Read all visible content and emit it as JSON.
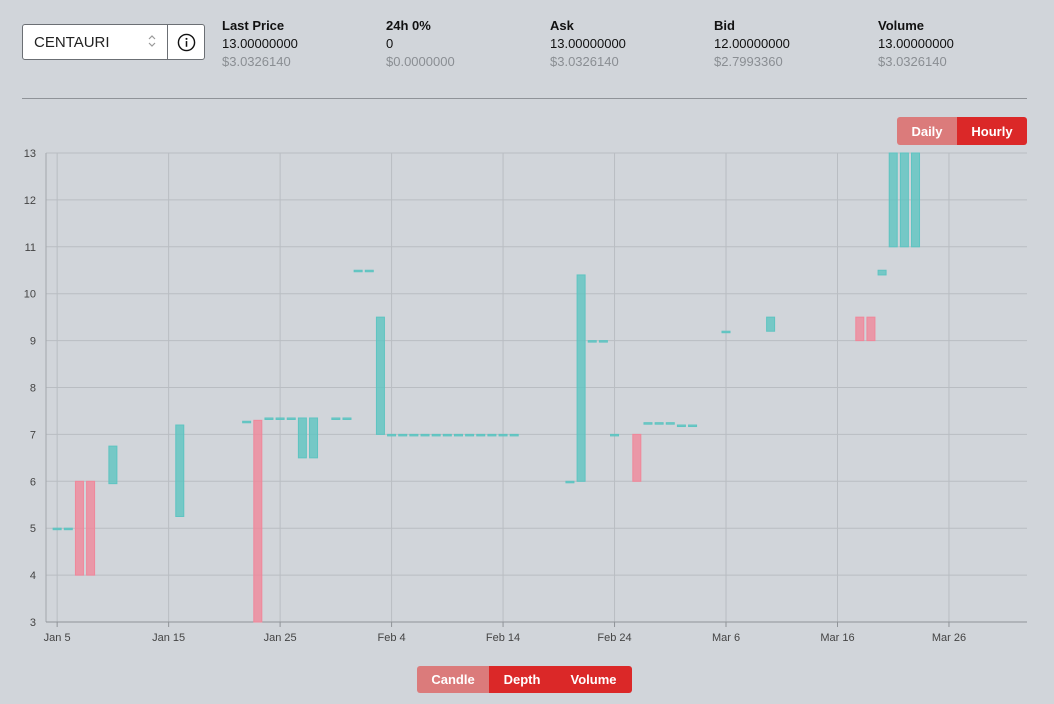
{
  "selector": {
    "value": "CENTAURI"
  },
  "stats": [
    {
      "label": "Last Price",
      "value": "13.00000000",
      "usd": "$3.0326140"
    },
    {
      "label": "24h 0%",
      "value": "0",
      "usd": "$0.0000000"
    },
    {
      "label": "Ask",
      "value": "13.00000000",
      "usd": "$3.0326140"
    },
    {
      "label": "Bid",
      "value": "12.00000000",
      "usd": "$2.7993360"
    },
    {
      "label": "Volume",
      "value": "13.00000000",
      "usd": "$3.0326140"
    }
  ],
  "period_toggle": {
    "daily": "Daily",
    "hourly": "Hourly",
    "active": "hourly"
  },
  "view_toggle": {
    "candle": "Candle",
    "depth": "Depth",
    "volume": "Volume"
  },
  "colors": {
    "up": "#5ec4c1",
    "down": "#f0879a",
    "accent": "#db2828",
    "accent_inactive": "#db7b7b"
  },
  "chart_data": {
    "type": "candlestick",
    "x_ticks": [
      "Jan 5",
      "Jan 15",
      "Jan 25",
      "Feb 4",
      "Feb 14",
      "Feb 24",
      "Mar 6",
      "Mar 16",
      "Mar 26"
    ],
    "y_ticks": [
      3,
      4,
      5,
      6,
      7,
      8,
      9,
      10,
      11,
      12,
      13
    ],
    "ylim": [
      3,
      13
    ],
    "xlim": [
      "Jan 4",
      "Apr 2"
    ],
    "grid": true,
    "candles": [
      {
        "date": "Jan 5",
        "open": 5.0,
        "close": 5.0
      },
      {
        "date": "Jan 6",
        "open": 5.0,
        "close": 5.0
      },
      {
        "date": "Jan 7",
        "open": 6.0,
        "close": 4.0
      },
      {
        "date": "Jan 8",
        "open": 6.0,
        "close": 4.0
      },
      {
        "date": "Jan 10",
        "open": 5.95,
        "close": 6.75
      },
      {
        "date": "Jan 16",
        "open": 5.25,
        "close": 7.2
      },
      {
        "date": "Jan 22",
        "open": 7.28,
        "close": 7.28
      },
      {
        "date": "Jan 23",
        "open": 7.3,
        "close": 3.0
      },
      {
        "date": "Jan 24",
        "open": 7.35,
        "close": 7.35
      },
      {
        "date": "Jan 25",
        "open": 7.35,
        "close": 7.35
      },
      {
        "date": "Jan 26",
        "open": 7.35,
        "close": 7.35
      },
      {
        "date": "Jan 27",
        "open": 6.5,
        "close": 7.35
      },
      {
        "date": "Jan 28",
        "open": 6.5,
        "close": 7.35
      },
      {
        "date": "Jan 30",
        "open": 7.35,
        "close": 7.35
      },
      {
        "date": "Jan 31",
        "open": 7.35,
        "close": 7.35
      },
      {
        "date": "Feb 1",
        "open": 10.5,
        "close": 10.5
      },
      {
        "date": "Feb 2",
        "open": 10.5,
        "close": 10.5
      },
      {
        "date": "Feb 3",
        "open": 7.0,
        "close": 9.5
      },
      {
        "date": "Feb 4",
        "open": 7.0,
        "close": 7.0
      },
      {
        "date": "Feb 5",
        "open": 7.0,
        "close": 7.0
      },
      {
        "date": "Feb 6",
        "open": 7.0,
        "close": 7.0
      },
      {
        "date": "Feb 7",
        "open": 7.0,
        "close": 7.0
      },
      {
        "date": "Feb 8",
        "open": 7.0,
        "close": 7.0
      },
      {
        "date": "Feb 9",
        "open": 7.0,
        "close": 7.0
      },
      {
        "date": "Feb 10",
        "open": 7.0,
        "close": 7.0
      },
      {
        "date": "Feb 11",
        "open": 7.0,
        "close": 7.0
      },
      {
        "date": "Feb 12",
        "open": 7.0,
        "close": 7.0
      },
      {
        "date": "Feb 13",
        "open": 7.0,
        "close": 7.0
      },
      {
        "date": "Feb 14",
        "open": 7.0,
        "close": 7.0
      },
      {
        "date": "Feb 15",
        "open": 7.0,
        "close": 7.0
      },
      {
        "date": "Feb 20",
        "open": 6.0,
        "close": 6.0
      },
      {
        "date": "Feb 21",
        "open": 6.0,
        "close": 10.4
      },
      {
        "date": "Feb 22",
        "open": 9.0,
        "close": 9.0
      },
      {
        "date": "Feb 23",
        "open": 9.0,
        "close": 9.0
      },
      {
        "date": "Feb 24",
        "open": 7.0,
        "close": 7.0
      },
      {
        "date": "Feb 26",
        "open": 7.0,
        "close": 6.0
      },
      {
        "date": "Feb 27",
        "open": 7.25,
        "close": 7.25
      },
      {
        "date": "Feb 28",
        "open": 7.25,
        "close": 7.25
      },
      {
        "date": "Mar 1",
        "open": 7.25,
        "close": 7.25
      },
      {
        "date": "Mar 2",
        "open": 7.2,
        "close": 7.2
      },
      {
        "date": "Mar 3",
        "open": 7.2,
        "close": 7.2
      },
      {
        "date": "Mar 6",
        "open": 9.2,
        "close": 9.2
      },
      {
        "date": "Mar 10",
        "open": 9.2,
        "close": 9.5
      },
      {
        "date": "Mar 18",
        "open": 9.5,
        "close": 9.0
      },
      {
        "date": "Mar 19",
        "open": 9.5,
        "close": 9.0
      },
      {
        "date": "Mar 20",
        "open": 10.4,
        "close": 10.5
      },
      {
        "date": "Mar 21",
        "open": 11.0,
        "close": 13.0
      },
      {
        "date": "Mar 22",
        "open": 11.0,
        "close": 13.0
      },
      {
        "date": "Mar 23",
        "open": 11.0,
        "close": 13.0
      }
    ]
  }
}
